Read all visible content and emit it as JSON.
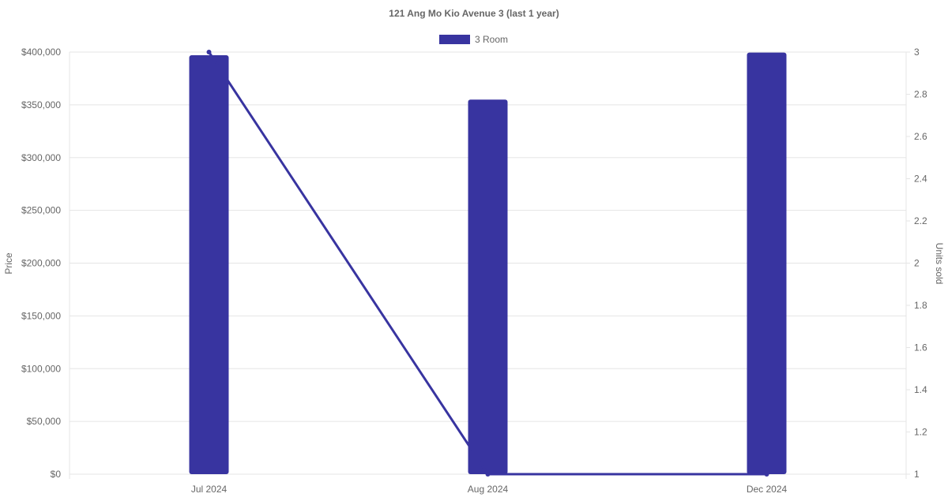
{
  "chart_data": {
    "type": "bar",
    "title": "121 Ang Mo Kio Avenue 3 (last 1 year)",
    "categories": [
      "Jul 2024",
      "Aug 2024",
      "Dec 2024"
    ],
    "series": [
      {
        "name": "3 Room",
        "type": "bar",
        "axis": "left",
        "values": [
          397000,
          355000,
          399500
        ]
      },
      {
        "type": "line",
        "axis": "right",
        "values": [
          3,
          1,
          1
        ]
      }
    ],
    "ylabel": "Price",
    "y2label": "Units sold",
    "ylim": [
      0,
      400000
    ],
    "y2lim": [
      1,
      3
    ],
    "yticks": [
      "$0",
      "$50,000",
      "$100,000",
      "$150,000",
      "$200,000",
      "$250,000",
      "$300,000",
      "$350,000",
      "$400,000"
    ],
    "y2ticks": [
      "1",
      "1.2",
      "1.4",
      "1.6",
      "1.8",
      "2",
      "2.2",
      "2.4",
      "2.6",
      "2.8",
      "3"
    ],
    "grid": true,
    "legend": "top",
    "colors": {
      "series": "#3834a0",
      "grid": "#e5e5e5",
      "text": "#666666"
    }
  }
}
